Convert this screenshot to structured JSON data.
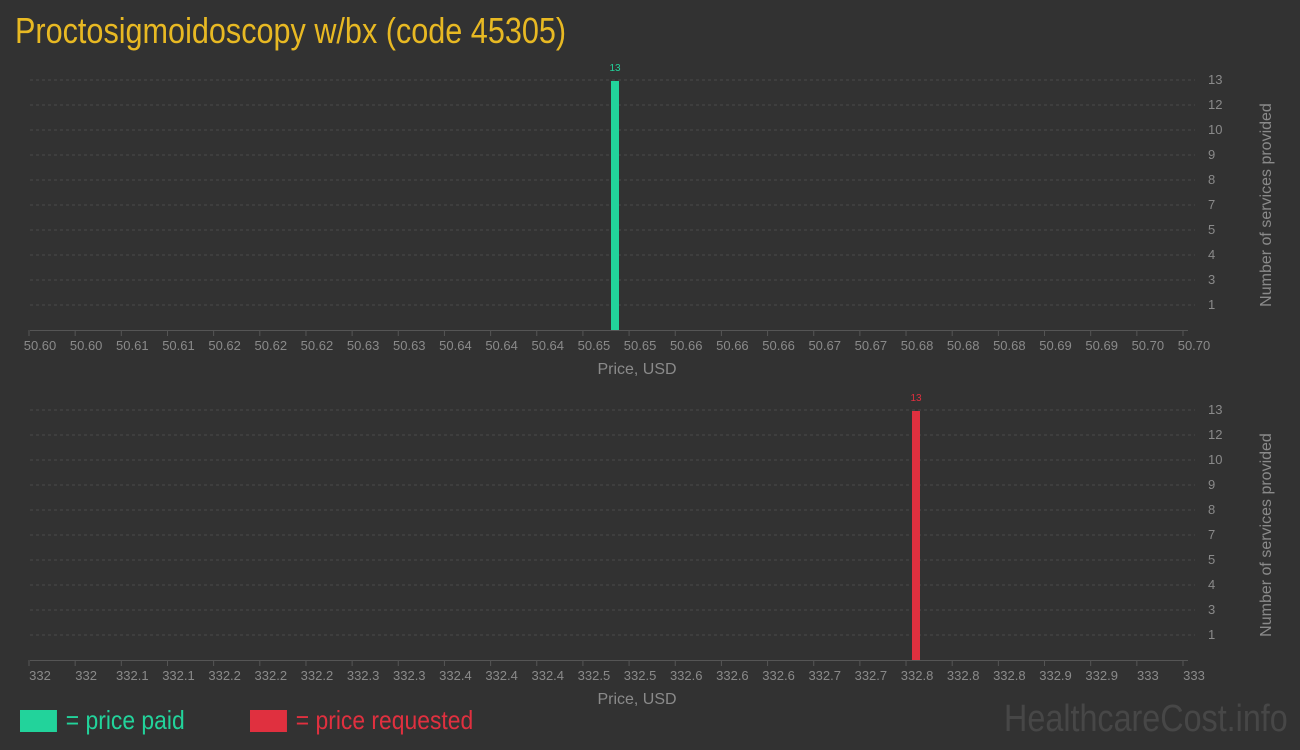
{
  "title": "Proctosigmoidoscopy w/bx (code 45305)",
  "watermark": "HealthcareCost.info",
  "legend": [
    {
      "label": "= price paid",
      "color": "#22d39b"
    },
    {
      "label": "= price requested",
      "color": "#e0303f"
    }
  ],
  "chart_data": [
    {
      "type": "bar",
      "xlabel": "Price, USD",
      "ylabel": "Number of services provided",
      "x_ticks": [
        "50.60",
        "50.60",
        "50.61",
        "50.61",
        "50.62",
        "50.62",
        "50.62",
        "50.63",
        "50.63",
        "50.64",
        "50.64",
        "50.64",
        "50.65",
        "50.65",
        "50.66",
        "50.66",
        "50.66",
        "50.67",
        "50.67",
        "50.68",
        "50.68",
        "50.68",
        "50.69",
        "50.69",
        "50.70",
        "50.70"
      ],
      "y_ticks": [
        "1",
        "3",
        "4",
        "5",
        "7",
        "8",
        "9",
        "10",
        "12",
        "13"
      ],
      "ylim": [
        0,
        13
      ],
      "grid": true,
      "bars": [
        {
          "x": 50.65,
          "value": 13,
          "label": "13"
        }
      ],
      "color": "#22d39b"
    },
    {
      "type": "bar",
      "xlabel": "Price, USD",
      "ylabel": "Number of services provided",
      "x_ticks": [
        "332",
        "332",
        "332.1",
        "332.1",
        "332.2",
        "332.2",
        "332.2",
        "332.3",
        "332.3",
        "332.4",
        "332.4",
        "332.4",
        "332.5",
        "332.5",
        "332.6",
        "332.6",
        "332.6",
        "332.7",
        "332.7",
        "332.8",
        "332.8",
        "332.8",
        "332.9",
        "332.9",
        "333",
        "333"
      ],
      "y_ticks": [
        "1",
        "3",
        "4",
        "5",
        "7",
        "8",
        "9",
        "10",
        "12",
        "13"
      ],
      "ylim": [
        0,
        13
      ],
      "grid": true,
      "bars": [
        {
          "x": 332.8,
          "value": 13,
          "label": "13"
        }
      ],
      "color": "#e0303f"
    }
  ]
}
